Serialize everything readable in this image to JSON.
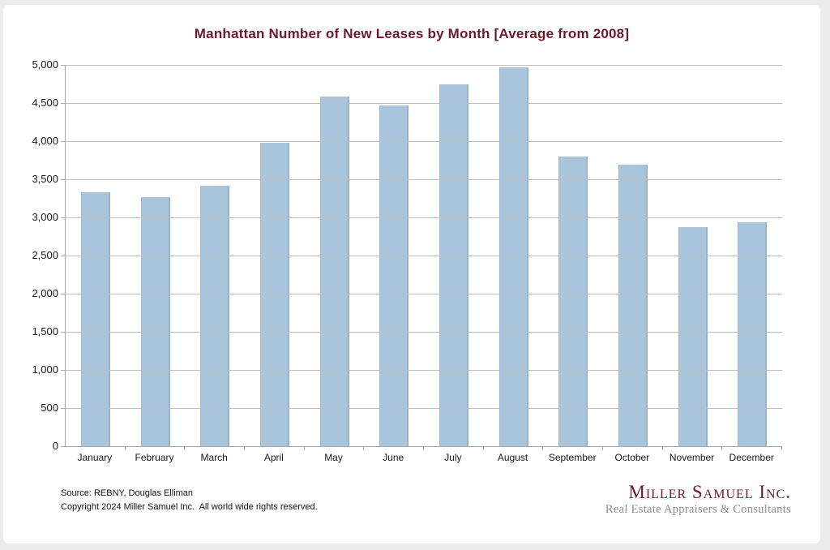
{
  "chart_data": {
    "type": "bar",
    "title": "Manhattan Number of New Leases by Month [Average from 2008]",
    "categories": [
      "January",
      "February",
      "March",
      "April",
      "May",
      "June",
      "July",
      "August",
      "September",
      "October",
      "November",
      "December"
    ],
    "values": [
      3330,
      3270,
      3420,
      3980,
      4590,
      4470,
      4750,
      4970,
      3800,
      3690,
      2870,
      2940
    ],
    "xlabel": "",
    "ylabel": "",
    "ylim": [
      0,
      5000
    ],
    "ytick_step": 500,
    "ytick_labels": [
      "0",
      "500",
      "1,000",
      "1,500",
      "2,000",
      "2,500",
      "3,000",
      "3,500",
      "4,000",
      "4,500",
      "5,000"
    ],
    "grid": true,
    "legend_position": "none",
    "bar_color": "#A9C5DB"
  },
  "footer": {
    "source": "Source: REBNY, Douglas Elliman",
    "copyright": "Copyright 2024 Miller Samuel Inc.  All world wide rights reserved."
  },
  "branding": {
    "company": "Miller Samuel Inc.",
    "tagline": "Real Estate Appraisers & Consultants"
  },
  "colors": {
    "title_maroon": "#6C1A2B",
    "brand_maroon": "#6C1A2B",
    "tagline_gray": "#8D8D8D",
    "bar_fill": "#A9C5DB",
    "gridline": "#BDBDBD",
    "axis": "#A9A9A9",
    "page_frame": "#ECECEC"
  }
}
